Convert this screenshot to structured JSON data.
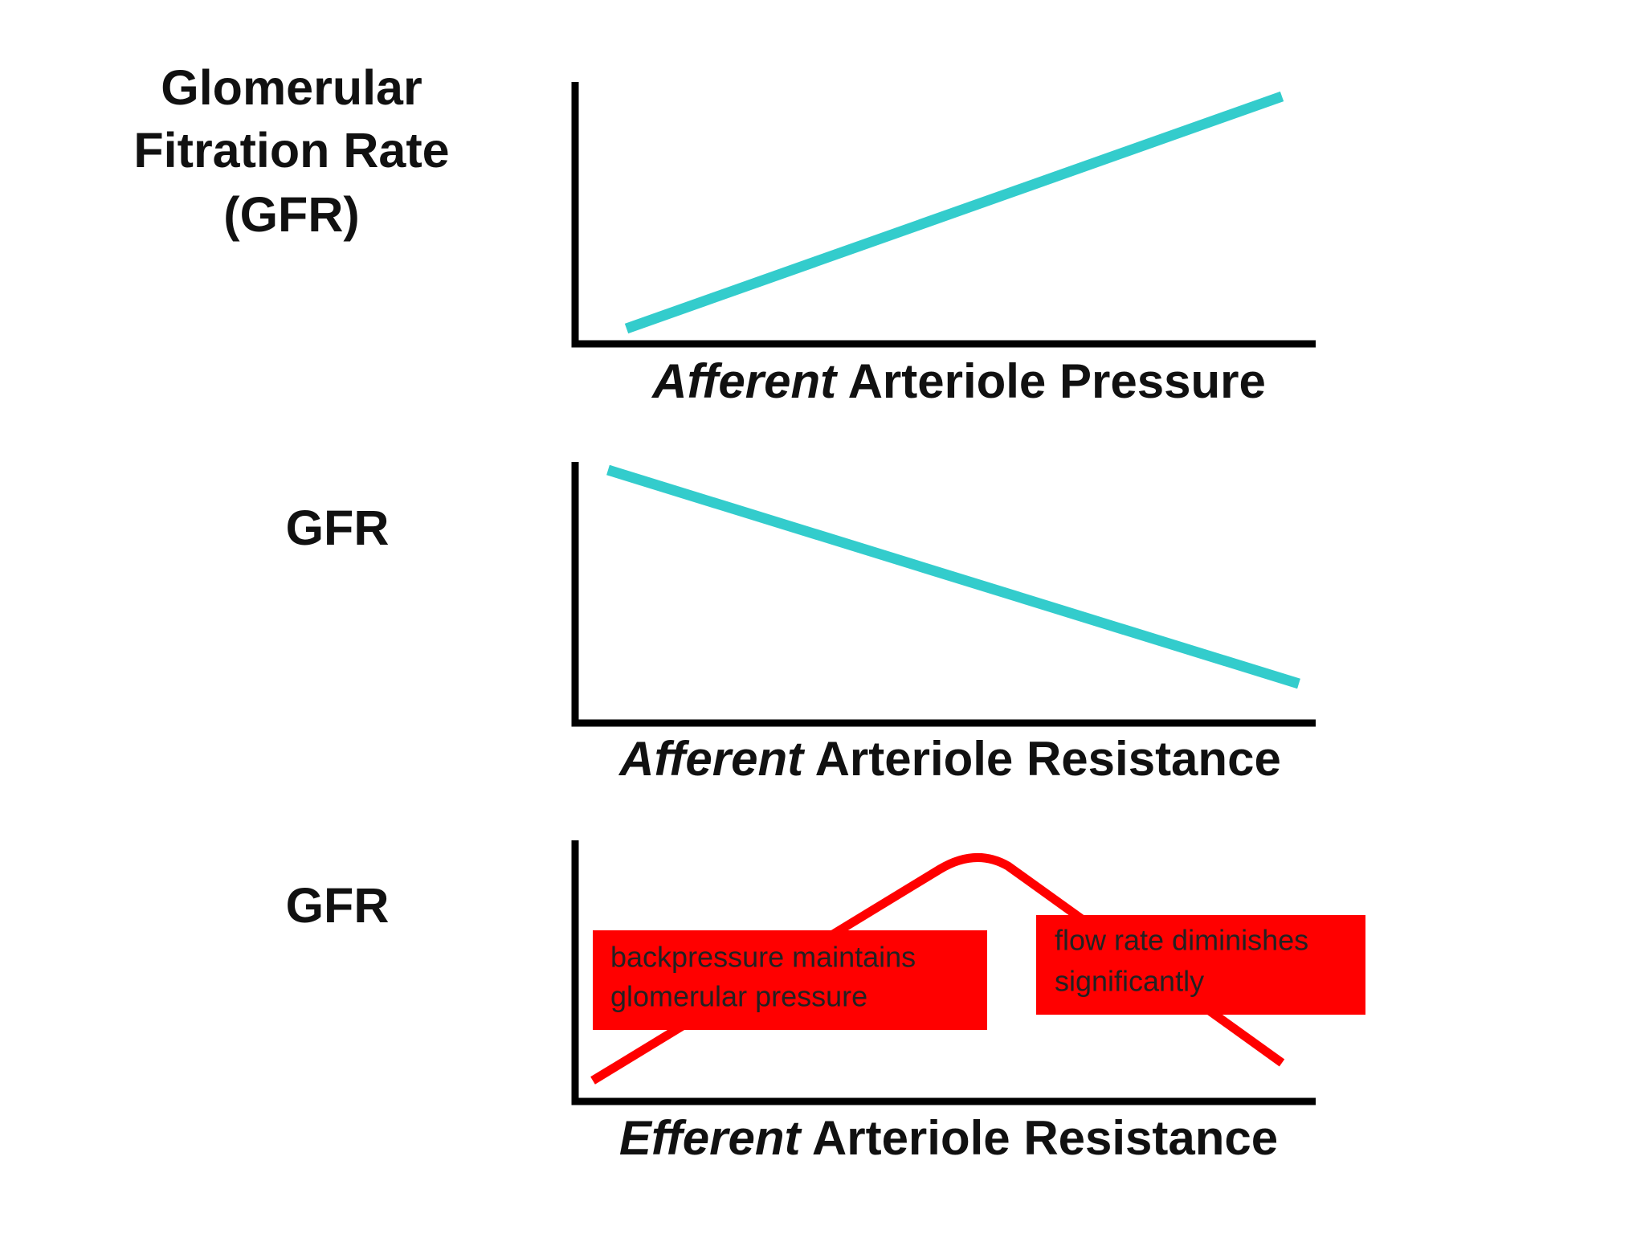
{
  "panels": [
    {
      "y_label": [
        "Glomerular",
        "Fitration Rate",
        "(GFR)"
      ],
      "x_label": {
        "italic": "Afferent",
        "rest": "Arteriole Pressure"
      }
    },
    {
      "y_label": [
        "GFR"
      ],
      "x_label": {
        "italic": "Afferent",
        "rest": "Arteriole Resistance"
      }
    },
    {
      "y_label": [
        "GFR"
      ],
      "x_label": {
        "italic": "Efferent",
        "rest": "Arteriole Resistance"
      },
      "annotations": [
        [
          "backpressure maintains",
          "glomerular pressure"
        ],
        [
          "flow rate diminishes",
          "significantly"
        ]
      ]
    }
  ]
}
